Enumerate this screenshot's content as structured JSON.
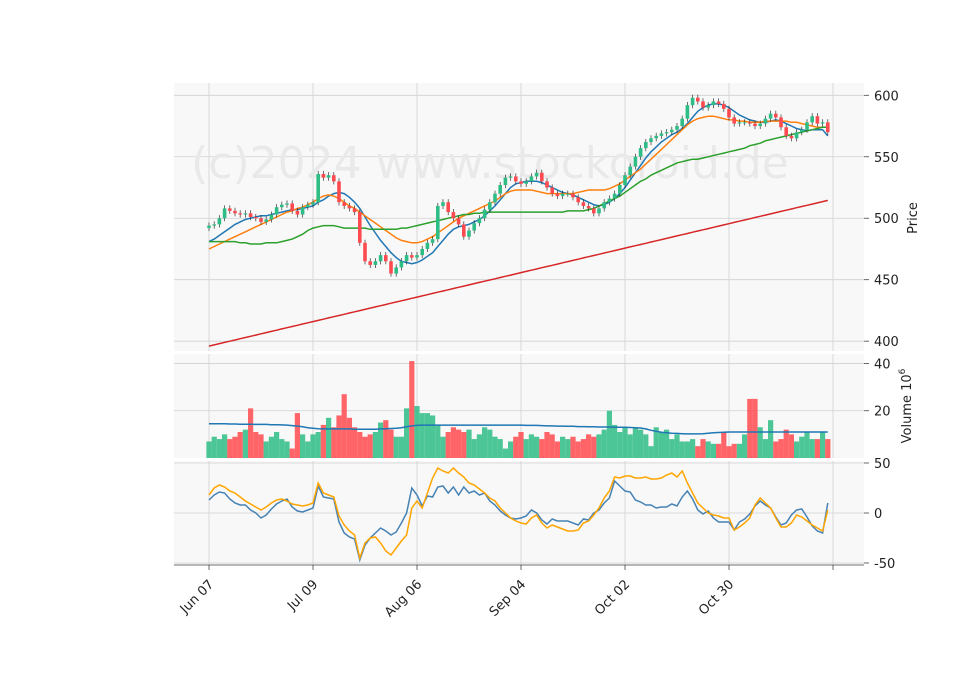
{
  "watermark": "(c)2024 www.stockoroid.de",
  "x_tick_labels": [
    "Jun 07",
    "Jul 09",
    "Aug 06",
    "Sep 04",
    "Oct 02",
    "Oct 30"
  ],
  "colors": {
    "up": "#2ebd85",
    "down": "#ff4a4f",
    "sma_short": "#1f77b4",
    "sma_mid": "#ff7f0e",
    "sma_long": "#2ca02c",
    "sma_longest": "#d62728",
    "osc_a": "#4682b4",
    "osc_b": "#ffa500",
    "panel_bg": "#f8f8f8",
    "grid": "#d0d0d0"
  },
  "chart_data": [
    {
      "type": "candlestick",
      "panel": "price",
      "ylabel": "Price",
      "ylim": [
        392,
        610
      ],
      "yticks": [
        400,
        450,
        500,
        550,
        600
      ],
      "grid": true,
      "n_bars": 120,
      "candles_close": [
        494,
        495,
        500,
        508,
        506,
        504,
        503,
        504,
        501,
        500,
        497,
        499,
        503,
        509,
        511,
        512,
        506,
        503,
        509,
        511,
        513,
        536,
        533,
        535,
        530,
        513,
        510,
        508,
        505,
        480,
        465,
        462,
        465,
        470,
        465,
        455,
        460,
        465,
        470,
        468,
        470,
        475,
        480,
        483,
        510,
        513,
        505,
        500,
        495,
        485,
        490,
        496,
        500,
        507,
        513,
        520,
        527,
        533,
        534,
        530,
        528,
        530,
        534,
        537,
        530,
        525,
        520,
        518,
        520,
        520,
        517,
        513,
        510,
        508,
        504,
        508,
        513,
        516,
        520,
        527,
        535,
        542,
        550,
        557,
        562,
        565,
        567,
        569,
        570,
        572,
        575,
        581,
        592,
        598,
        595,
        590,
        592,
        595,
        593,
        589,
        582,
        577,
        578,
        578,
        577,
        575,
        577,
        581,
        585,
        582,
        574,
        567,
        565,
        570,
        572,
        578,
        583,
        577,
        578,
        570
      ],
      "overlays": [
        {
          "key": "sma_short",
          "values": [
            481,
            483,
            486,
            489,
            492,
            495,
            497,
            499,
            500,
            501,
            502,
            502,
            503,
            504,
            505,
            506,
            507,
            507,
            508,
            509,
            510,
            513,
            515,
            518,
            520,
            521,
            520,
            517,
            513,
            508,
            501,
            494,
            488,
            482,
            477,
            472,
            468,
            465,
            464,
            463,
            464,
            466,
            469,
            472,
            477,
            482,
            487,
            491,
            493,
            494,
            495,
            497,
            499,
            502,
            506,
            510,
            515,
            520,
            525,
            528,
            529,
            530,
            530,
            530,
            529,
            527,
            525,
            523,
            521,
            520,
            519,
            517,
            515,
            513,
            511,
            510,
            511,
            513,
            516,
            520,
            525,
            531,
            537,
            543,
            549,
            554,
            558,
            562,
            565,
            568,
            570,
            573,
            577,
            582,
            587,
            590,
            592,
            593,
            593,
            592,
            590,
            587,
            584,
            582,
            580,
            579,
            578,
            578,
            579,
            580,
            579,
            577,
            575,
            573,
            572,
            571,
            572,
            572,
            572,
            567
          ]
        },
        {
          "key": "sma_mid",
          "values": [
            475,
            477,
            479,
            481,
            483,
            485,
            487,
            489,
            491,
            493,
            495,
            497,
            499,
            501,
            503,
            505,
            506,
            508,
            509,
            511,
            513,
            516,
            518,
            519,
            518,
            516,
            513,
            510,
            508,
            505,
            502,
            499,
            496,
            493,
            490,
            487,
            484,
            482,
            481,
            480,
            480,
            481,
            483,
            485,
            488,
            491,
            494,
            497,
            500,
            502,
            504,
            506,
            508,
            510,
            512,
            514,
            517,
            520,
            522,
            523,
            523,
            523,
            523,
            522,
            521,
            520,
            520,
            520,
            520,
            520,
            520,
            521,
            522,
            523,
            523,
            523,
            523,
            524,
            526,
            528,
            531,
            534,
            537,
            540,
            544,
            548,
            552,
            556,
            560,
            564,
            568,
            572,
            576,
            579,
            581,
            582,
            583,
            583,
            582,
            581,
            580,
            580,
            579,
            579,
            578,
            578,
            578,
            579,
            579,
            579,
            579,
            579,
            578,
            578,
            577,
            576,
            575,
            574,
            574,
            574
          ]
        },
        {
          "key": "sma_long",
          "values": [
            481,
            481,
            481,
            481,
            481,
            481,
            480,
            480,
            479,
            479,
            479,
            480,
            480,
            480,
            481,
            482,
            483,
            485,
            487,
            490,
            492,
            493,
            494,
            494,
            494,
            493,
            492,
            492,
            492,
            492,
            492,
            491,
            491,
            491,
            491,
            491,
            491,
            492,
            492,
            493,
            494,
            495,
            496,
            497,
            498,
            499,
            500,
            501,
            502,
            503,
            503,
            504,
            504,
            505,
            505,
            505,
            505,
            505,
            505,
            505,
            505,
            505,
            505,
            505,
            505,
            505,
            505,
            505,
            505,
            506,
            506,
            506,
            506,
            507,
            508,
            510,
            512,
            514,
            516,
            518,
            521,
            524,
            527,
            530,
            532,
            535,
            537,
            539,
            541,
            543,
            545,
            546,
            547,
            548,
            548,
            549,
            550,
            551,
            552,
            553,
            554,
            555,
            556,
            557,
            559,
            560,
            561,
            563,
            564,
            565,
            566,
            567,
            568,
            569,
            570,
            571,
            572,
            573,
            574,
            574
          ]
        },
        {
          "key": "sma_longest",
          "linear": [
            396,
            514.5
          ]
        }
      ]
    },
    {
      "type": "bar",
      "panel": "volume",
      "ylabel": "Volume 10^6",
      "ylim": [
        0,
        44
      ],
      "yticks": [
        20,
        40
      ],
      "grid": true,
      "values": [
        7,
        9,
        8,
        10,
        8,
        9,
        11,
        12,
        21,
        11,
        10,
        7,
        9,
        11,
        8,
        7,
        4,
        19,
        10,
        7,
        10,
        11,
        14,
        17,
        13,
        18,
        27,
        17,
        13,
        11,
        9,
        10,
        11,
        15,
        16,
        12,
        9,
        9,
        21,
        41,
        22,
        19,
        19,
        18,
        14,
        9,
        11,
        13,
        12,
        11,
        12,
        8,
        10,
        13,
        12,
        9,
        8,
        4,
        7,
        9,
        11,
        8,
        10,
        9,
        8,
        11,
        10,
        7,
        9,
        8,
        9,
        7,
        8,
        10,
        9,
        10,
        12,
        20,
        14,
        11,
        13,
        10,
        13,
        12,
        10,
        5,
        13,
        11,
        12,
        8,
        10,
        7,
        7,
        8,
        5,
        8,
        7,
        6,
        6,
        11,
        5,
        6,
        6,
        10,
        25,
        25,
        13,
        8,
        16,
        7,
        8,
        12,
        10,
        7,
        9,
        11,
        8,
        8,
        11,
        8
      ],
      "overlay": {
        "key": "sma_short",
        "values": [
          14.5,
          14.5,
          14.5,
          14.5,
          14.4,
          14.4,
          14.3,
          14.3,
          14.3,
          14.2,
          14.2,
          14.2,
          14.1,
          14.1,
          14.0,
          13.9,
          13.7,
          13.5,
          13.2,
          12.8,
          12.6,
          12.4,
          12.3,
          12.3,
          12.3,
          12.3,
          12.3,
          12.3,
          12.2,
          12.2,
          12.2,
          12.2,
          12.2,
          12.3,
          12.4,
          12.5,
          12.6,
          12.8,
          13.2,
          13.6,
          13.8,
          13.9,
          13.9,
          13.9,
          13.9,
          13.9,
          13.9,
          13.9,
          13.9,
          13.9,
          13.9,
          13.9,
          13.9,
          13.9,
          13.9,
          13.9,
          13.9,
          13.9,
          13.9,
          13.9,
          13.9,
          13.8,
          13.8,
          13.8,
          13.7,
          13.6,
          13.6,
          13.5,
          13.5,
          13.4,
          13.4,
          13.3,
          13.3,
          13.2,
          13.2,
          13.1,
          13.1,
          13.1,
          13.0,
          13.0,
          13.0,
          12.9,
          12.8,
          12.7,
          12.3,
          11.7,
          11.3,
          10.9,
          10.7,
          10.5,
          10.4,
          10.3,
          10.2,
          10.2,
          10.2,
          10.3,
          10.5,
          10.7,
          10.8,
          10.9,
          11.0,
          11.0,
          11.0,
          11.0,
          11.0,
          11.0,
          11.0,
          11.0,
          11.0,
          11.0,
          11.0,
          11.0,
          11.0,
          11.0,
          11.0,
          11.0,
          11.0,
          11.0,
          11.0,
          11.0
        ]
      }
    },
    {
      "type": "line",
      "panel": "oscillator",
      "ylim": [
        -52,
        52
      ],
      "yticks": [
        -50,
        0,
        50
      ],
      "grid": true,
      "series": [
        {
          "key": "osc_a",
          "values": [
            13,
            18,
            21,
            20,
            14,
            10,
            8,
            8,
            3,
            0,
            -5,
            -2,
            4,
            9,
            12,
            14,
            6,
            2,
            1,
            3,
            5,
            27,
            16,
            15,
            14,
            -9,
            -20,
            -24,
            -26,
            -47,
            -32,
            -25,
            -20,
            -15,
            -18,
            -22,
            -19,
            -10,
            0,
            25,
            18,
            7,
            17,
            16,
            26,
            27,
            20,
            26,
            18,
            26,
            20,
            22,
            18,
            20,
            12,
            8,
            2,
            -2,
            -5,
            -6,
            -5,
            -3,
            3,
            0,
            -7,
            -11,
            -6,
            -8,
            -8,
            -8,
            -10,
            -12,
            -6,
            -7,
            0,
            3,
            10,
            15,
            32,
            27,
            22,
            21,
            13,
            11,
            8,
            8,
            5,
            6,
            6,
            9,
            7,
            16,
            22,
            14,
            3,
            -1,
            2,
            -5,
            -9,
            -9,
            -9,
            -17,
            -9,
            -6,
            -1,
            7,
            12,
            8,
            5,
            -4,
            -12,
            -10,
            -2,
            3,
            4,
            -4,
            -13,
            -18,
            -20,
            10
          ]
        },
        {
          "key": "osc_b",
          "values": [
            18,
            25,
            28,
            26,
            22,
            20,
            16,
            12,
            9,
            6,
            3,
            6,
            10,
            13,
            14,
            12,
            9,
            8,
            7,
            8,
            10,
            30,
            20,
            18,
            16,
            -3,
            -12,
            -18,
            -22,
            -45,
            -30,
            -25,
            -24,
            -30,
            -38,
            -42,
            -35,
            -28,
            -22,
            5,
            12,
            5,
            20,
            35,
            45,
            42,
            40,
            45,
            40,
            36,
            30,
            28,
            24,
            20,
            15,
            12,
            5,
            0,
            -5,
            -8,
            -10,
            -11,
            -5,
            -2,
            -10,
            -15,
            -12,
            -14,
            -16,
            -18,
            -18,
            -17,
            -10,
            -8,
            -2,
            5,
            15,
            22,
            36,
            35,
            37,
            37,
            35,
            35,
            36,
            34,
            34,
            35,
            38,
            40,
            36,
            42,
            30,
            20,
            10,
            5,
            0,
            -2,
            -3,
            -5,
            -5,
            -17,
            -14,
            -10,
            -5,
            8,
            15,
            10,
            5,
            -5,
            -14,
            -14,
            -10,
            -2,
            -4,
            -8,
            -12,
            -15,
            -18,
            3
          ]
        }
      ]
    }
  ]
}
